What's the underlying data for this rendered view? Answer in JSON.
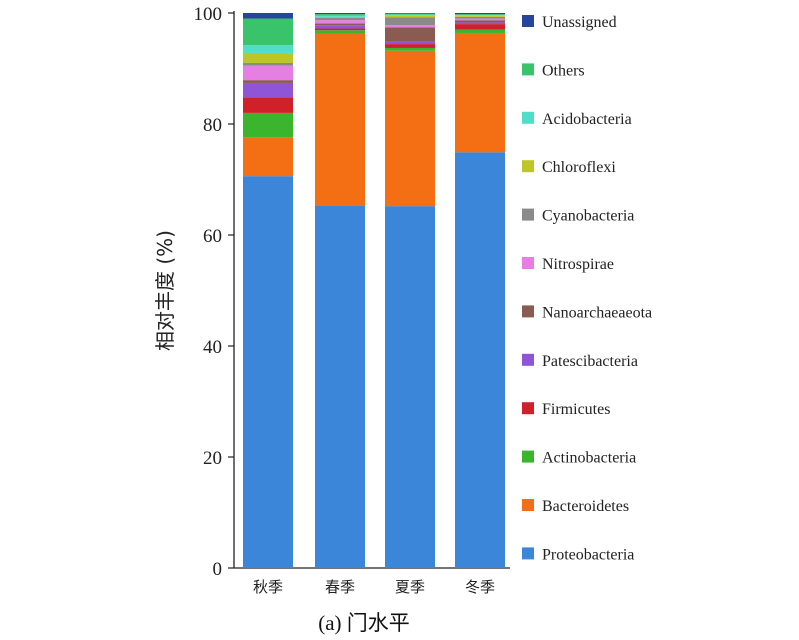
{
  "chart_data": {
    "type": "bar",
    "stacked": true,
    "categories": [
      "秋季",
      "春季",
      "夏季",
      "冬季"
    ],
    "ylabel": "相对丰度 (%)",
    "caption": "(a) 门水平",
    "ylim": [
      0,
      100
    ],
    "yticks": [
      "0",
      "20",
      "40",
      "60",
      "80",
      "100"
    ],
    "legend_position": "right",
    "series": [
      {
        "name": "Proteobacteria",
        "color": "#3b86d8",
        "values": [
          70.6,
          65.3,
          65.2,
          74.9
        ]
      },
      {
        "name": "Bacteroidetes",
        "color": "#f46e14",
        "values": [
          7.0,
          31.0,
          28.0,
          21.5
        ]
      },
      {
        "name": "Actinobacteria",
        "color": "#3cb52e",
        "values": [
          4.4,
          0.6,
          0.5,
          0.6
        ]
      },
      {
        "name": "Firmicutes",
        "color": "#d0202a",
        "values": [
          2.8,
          0.3,
          0.7,
          1.0
        ]
      },
      {
        "name": "Patescibacteria",
        "color": "#8f55d6",
        "values": [
          2.6,
          0.6,
          0.4,
          0.3
        ]
      },
      {
        "name": "Nanoarchaeaeota",
        "color": "#8a5c51",
        "values": [
          0.5,
          0.3,
          2.6,
          0.4
        ]
      },
      {
        "name": "Nitrospirae",
        "color": "#e77ee3",
        "values": [
          2.6,
          0.6,
          0.4,
          0.3
        ]
      },
      {
        "name": "Cyanobacteria",
        "color": "#8a8a8a",
        "values": [
          0.5,
          0.4,
          1.4,
          0.3
        ]
      },
      {
        "name": "Chloroflexi",
        "color": "#bcc628",
        "values": [
          1.8,
          0.2,
          0.3,
          0.2
        ]
      },
      {
        "name": "Acidobacteria",
        "color": "#4fdfc6",
        "values": [
          1.4,
          0.2,
          0.2,
          0.1
        ]
      },
      {
        "name": "Others",
        "color": "#39c46b",
        "values": [
          4.8,
          0.3,
          0.2,
          0.2
        ]
      },
      {
        "name": "Unassigned",
        "color": "#28459e",
        "values": [
          1.0,
          0.2,
          0.1,
          0.2
        ]
      }
    ]
  }
}
